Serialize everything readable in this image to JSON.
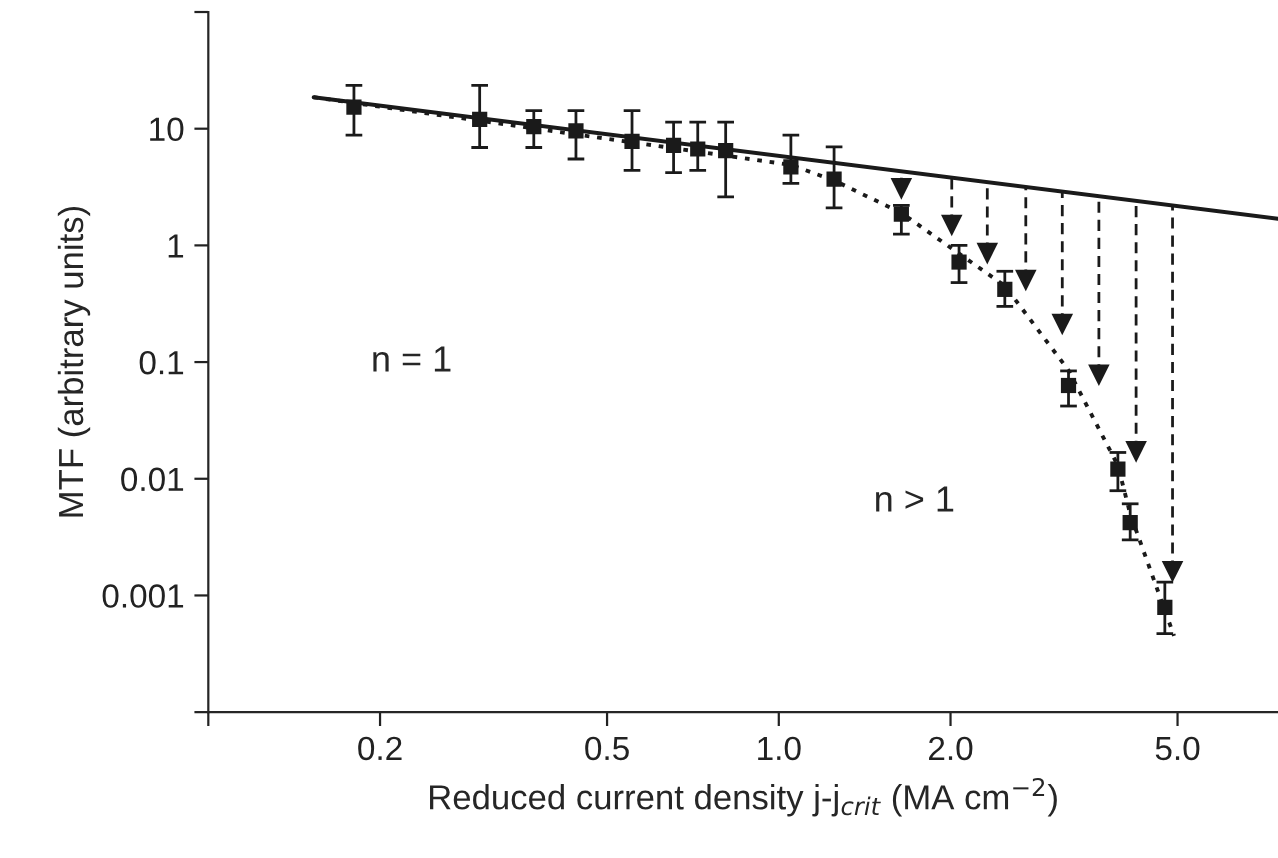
{
  "chart_data": {
    "type": "scatter",
    "xlabel": "Reduced current density j-j$_{crit}$ (MA cm$^{−2}$)",
    "ylabel": "MTF (arbitrary units)",
    "log": "xy",
    "xlim": [
      0.1,
      7.5
    ],
    "ylim": [
      0.0001,
      100
    ],
    "xticks": [
      {
        "value": 0.1,
        "label": null
      },
      0.2,
      0.5,
      {
        "value": 1,
        "label": "1.0"
      },
      {
        "value": 2,
        "label": "2.0"
      },
      {
        "value": 5,
        "label": "5.0"
      }
    ],
    "yticks": [
      {
        "value": 0.0001,
        "label": null
      },
      0.001,
      0.01,
      0.1,
      1,
      10,
      {
        "value": 100,
        "label": null
      }
    ],
    "grid": false,
    "series": [
      {
        "type": "line",
        "color": "#1a1a1a",
        "line_style": "solid",
        "marker": "none",
        "x": [
          0.153,
          7.5
        ],
        "values": [
          18.6,
          1.69
        ]
      },
      {
        "type": "line",
        "color": "#1a1a1a",
        "line_style": "dotted",
        "marker": "none",
        "x": [
          0.153,
          1.05,
          1.25,
          1.64,
          2.07,
          2.49,
          3.22,
          3.93,
          4.13,
          4.93
        ],
        "values": [
          18.6,
          4.9,
          3.6,
          1.9,
          0.85,
          0.45,
          0.085,
          0.013,
          0.005,
          0.00045
        ]
      },
      {
        "color": "#1a1a1a",
        "marker": "square",
        "x": [
          0.18,
          0.299,
          0.372,
          0.441,
          0.553,
          0.654,
          0.721,
          0.807,
          1.05,
          1.25,
          1.64,
          2.07,
          2.49,
          3.22,
          3.93,
          4.13,
          4.75
        ],
        "values": [
          15.3,
          12.0,
          10.4,
          9.6,
          7.8,
          7.2,
          6.7,
          6.5,
          4.7,
          3.7,
          1.85,
          0.72,
          0.42,
          0.063,
          0.0121,
          0.0042,
          0.00079
        ],
        "errors": [
          [
            8.8,
            23.5
          ],
          [
            6.9,
            23.5
          ],
          [
            6.9,
            14.3
          ],
          [
            5.5,
            14.3
          ],
          [
            4.4,
            14.3
          ],
          [
            4.2,
            11.4
          ],
          [
            4.4,
            11.4
          ],
          [
            2.6,
            11.4
          ],
          [
            3.4,
            8.8
          ],
          [
            2.1,
            7.0
          ],
          [
            1.25,
            2.2
          ],
          [
            0.48,
            1.0
          ],
          [
            0.3,
            0.6
          ],
          [
            0.042,
            0.084
          ],
          [
            0.0079,
            0.0168
          ],
          [
            0.003,
            0.0061
          ],
          [
            0.00047,
            0.0013
          ]
        ]
      },
      {
        "color": "#1a1a1a",
        "marker": "triangle",
        "line_style": "dashed",
        "x": [
          1.64,
          2.01,
          2.32,
          2.71,
          3.14,
          3.64,
          4.23,
          4.9
        ],
        "values": [
          3.05,
          1.48,
          0.85,
          0.5,
          0.21,
          0.077,
          0.017,
          0.0016
        ],
        "errors": [
          [
            3.05,
            4.3
          ],
          [
            1.48,
            3.8
          ],
          [
            0.85,
            3.5
          ],
          [
            0.5,
            3.2
          ],
          [
            0.21,
            2.9
          ],
          [
            0.077,
            2.6
          ],
          [
            0.017,
            2.4
          ],
          [
            0.0016,
            2.2
          ]
        ]
      }
    ],
    "annotations": [
      "n = 1",
      "n > 1"
    ]
  }
}
